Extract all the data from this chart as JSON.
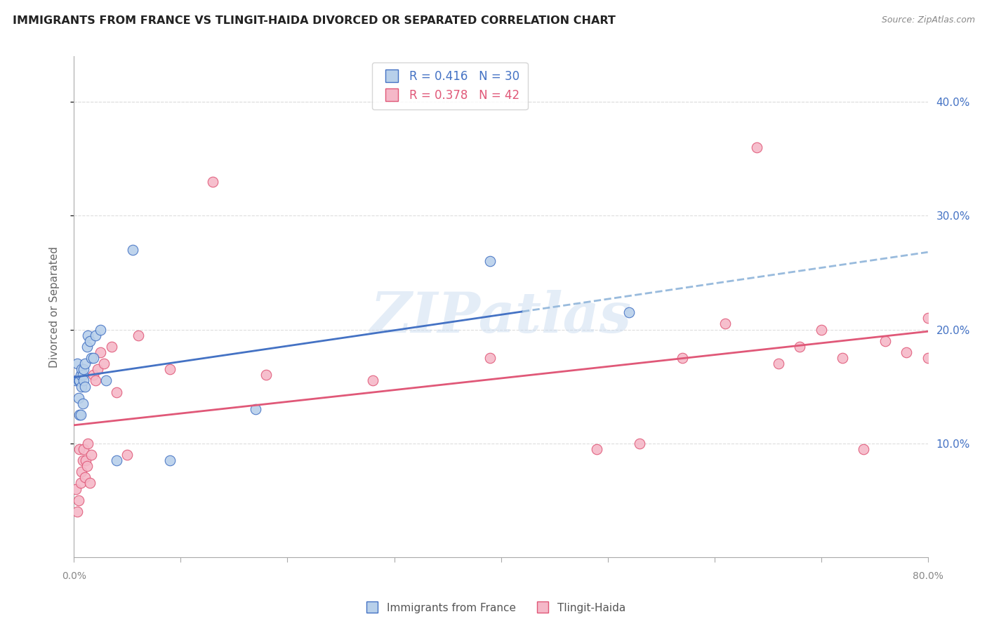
{
  "title": "IMMIGRANTS FROM FRANCE VS TLINGIT-HAIDA DIVORCED OR SEPARATED CORRELATION CHART",
  "source_text": "Source: ZipAtlas.com",
  "ylabel": "Divorced or Separated",
  "legend_label1": "Immigrants from France",
  "legend_label2": "Tlingit-Haida",
  "r1": 0.416,
  "n1": 30,
  "r2": 0.378,
  "n2": 42,
  "color1": "#b8d0ea",
  "color2": "#f5b8c8",
  "line_color1": "#4472c4",
  "line_color2": "#e05878",
  "dashed_color": "#99bbdd",
  "axis_label_color": "#4472c4",
  "grid_color": "#dddddd",
  "xlim": [
    0.0,
    0.8
  ],
  "ylim": [
    0.0,
    0.44
  ],
  "xtick_positions": [
    0.0,
    0.1,
    0.2,
    0.3,
    0.4,
    0.5,
    0.6,
    0.7,
    0.8
  ],
  "xtick_labels": [
    "0.0%",
    "",
    "",
    "",
    "",
    "",
    "",
    "",
    "80.0%"
  ],
  "yticks": [
    0.1,
    0.2,
    0.3,
    0.4
  ],
  "ytick_labels": [
    "10.0%",
    "20.0%",
    "30.0%",
    "40.0%"
  ],
  "watermark": "ZIPatlas",
  "blue_scatter_x": [
    0.002,
    0.003,
    0.004,
    0.004,
    0.005,
    0.005,
    0.006,
    0.006,
    0.007,
    0.007,
    0.008,
    0.008,
    0.009,
    0.009,
    0.01,
    0.01,
    0.012,
    0.013,
    0.015,
    0.016,
    0.018,
    0.02,
    0.025,
    0.03,
    0.04,
    0.055,
    0.09,
    0.17,
    0.39,
    0.52
  ],
  "blue_scatter_y": [
    0.155,
    0.17,
    0.14,
    0.155,
    0.125,
    0.155,
    0.125,
    0.16,
    0.165,
    0.15,
    0.135,
    0.16,
    0.165,
    0.155,
    0.15,
    0.17,
    0.185,
    0.195,
    0.19,
    0.175,
    0.175,
    0.195,
    0.2,
    0.155,
    0.085,
    0.27,
    0.085,
    0.13,
    0.26,
    0.215
  ],
  "pink_scatter_x": [
    0.002,
    0.003,
    0.004,
    0.005,
    0.006,
    0.007,
    0.008,
    0.009,
    0.01,
    0.011,
    0.012,
    0.013,
    0.015,
    0.016,
    0.018,
    0.02,
    0.022,
    0.025,
    0.028,
    0.035,
    0.04,
    0.05,
    0.06,
    0.09,
    0.13,
    0.18,
    0.28,
    0.39,
    0.49,
    0.53,
    0.57,
    0.61,
    0.64,
    0.66,
    0.68,
    0.7,
    0.72,
    0.74,
    0.76,
    0.78,
    0.8,
    0.8
  ],
  "pink_scatter_y": [
    0.06,
    0.04,
    0.05,
    0.095,
    0.065,
    0.075,
    0.085,
    0.095,
    0.07,
    0.085,
    0.08,
    0.1,
    0.065,
    0.09,
    0.16,
    0.155,
    0.165,
    0.18,
    0.17,
    0.185,
    0.145,
    0.09,
    0.195,
    0.165,
    0.33,
    0.16,
    0.155,
    0.175,
    0.095,
    0.1,
    0.175,
    0.205,
    0.36,
    0.17,
    0.185,
    0.2,
    0.175,
    0.095,
    0.19,
    0.18,
    0.21,
    0.175
  ],
  "dashed_line_x": [
    0.42,
    0.8
  ],
  "dashed_line_y": [
    0.225,
    0.27
  ]
}
